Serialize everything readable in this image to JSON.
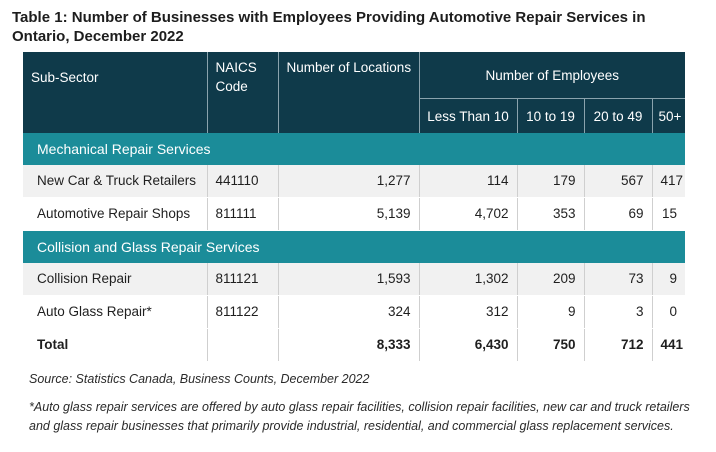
{
  "title": "Table 1: Number of Businesses with Employees Providing Automotive Repair Services in Ontario, December 2022",
  "headers": {
    "subsector": "Sub-Sector",
    "naics": "NAICS Code",
    "locations": "Number of Locations",
    "employees": "Number of Employees",
    "bands": [
      "Less Than 10",
      "10 to 19",
      "20 to 49",
      "50+"
    ]
  },
  "sections": [
    {
      "name": "Mechanical Repair Services",
      "rows": [
        {
          "subsector": "New Car & Truck Retailers",
          "code": "441110",
          "locations": "1,277",
          "lt10": "114",
          "b10_19": "179",
          "b20_49": "567",
          "b50": "417"
        },
        {
          "subsector": "Automotive Repair Shops",
          "code": "811111",
          "locations": "5,139",
          "lt10": "4,702",
          "b10_19": "353",
          "b20_49": "69",
          "b50": "15"
        }
      ]
    },
    {
      "name": "Collision and Glass Repair Services",
      "rows": [
        {
          "subsector": "Collision Repair",
          "code": "811121",
          "locations": "1,593",
          "lt10": "1,302",
          "b10_19": "209",
          "b20_49": "73",
          "b50": "9"
        },
        {
          "subsector": "Auto Glass Repair*",
          "code": "811122",
          "locations": "324",
          "lt10": "312",
          "b10_19": "9",
          "b20_49": "3",
          "b50": "0"
        }
      ]
    }
  ],
  "total": {
    "label": "Total",
    "locations": "8,333",
    "lt10": "6,430",
    "b10_19": "750",
    "b20_49": "712",
    "b50": "441"
  },
  "source": "Source: Statistics Canada, Business Counts, December 2022",
  "note": "*Auto glass repair services are offered by auto glass repair facilities, collision repair facilities, new car and truck retailers and glass repair businesses that primarily provide industrial, residential, and commercial glass replacement services."
}
